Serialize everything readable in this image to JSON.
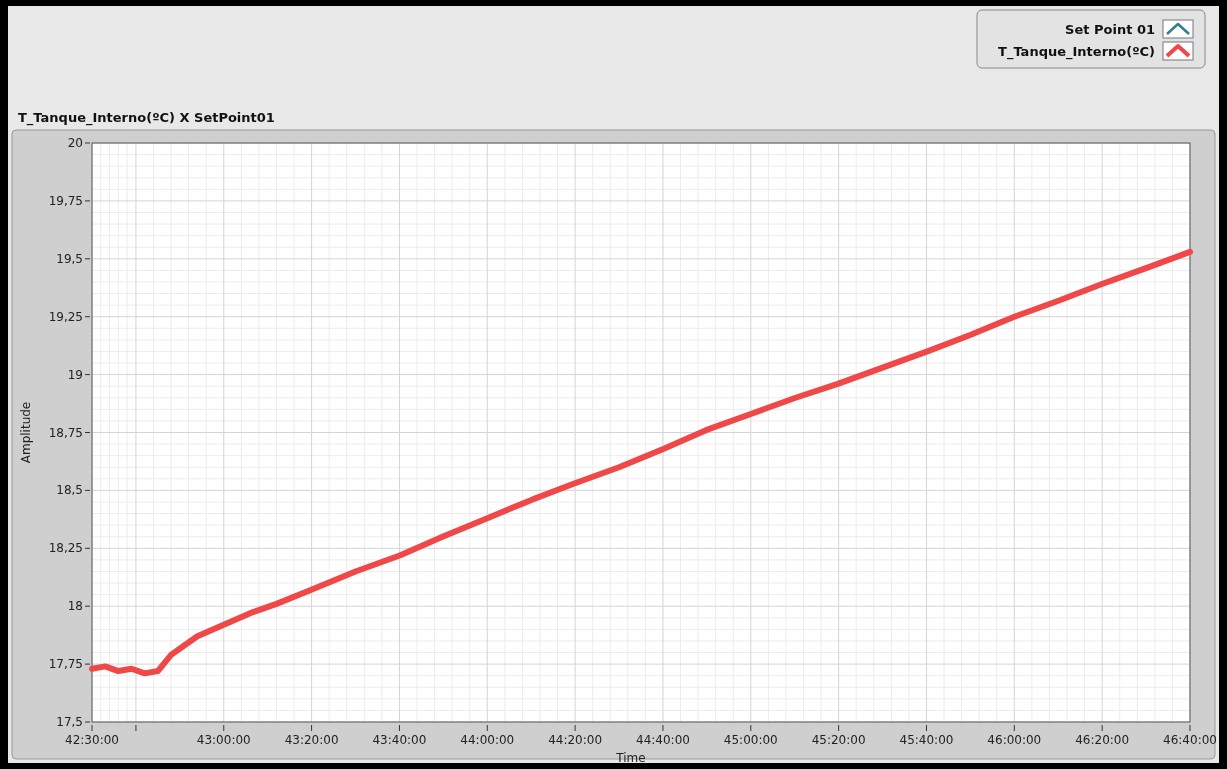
{
  "chart_data": {
    "type": "line",
    "title": "T_Tanque_Interno(ºC) X SetPoint01",
    "xlabel": "Time",
    "ylabel": "Amplitude",
    "xlim": [
      42.5,
      46.6667
    ],
    "xticks": [
      {
        "value": 42.5,
        "label": "42:30:00"
      },
      {
        "value": 42.6667,
        "label": null
      },
      {
        "value": 43,
        "label": "43:00:00"
      },
      {
        "value": 43.3333,
        "label": "43:20:00"
      },
      {
        "value": 43.6667,
        "label": "43:40:00"
      },
      {
        "value": 44,
        "label": "44:00:00"
      },
      {
        "value": 44.3333,
        "label": "44:20:00"
      },
      {
        "value": 44.6667,
        "label": "44:40:00"
      },
      {
        "value": 45,
        "label": "45:00:00"
      },
      {
        "value": 45.3333,
        "label": "45:20:00"
      },
      {
        "value": 45.6667,
        "label": "45:40:00"
      },
      {
        "value": 46,
        "label": "46:00:00"
      },
      {
        "value": 46.3333,
        "label": "46:20:00"
      },
      {
        "value": 46.6667,
        "label": "46:40:00"
      }
    ],
    "ylim": [
      17.5,
      20
    ],
    "yticks": [
      {
        "value": 17.5,
        "label": "17,5"
      },
      {
        "value": 17.75,
        "label": "17,75"
      },
      {
        "value": 18,
        "label": "18"
      },
      {
        "value": 18.25,
        "label": "18,25"
      },
      {
        "value": 18.5,
        "label": "18,5"
      },
      {
        "value": 18.75,
        "label": "18,75"
      },
      {
        "value": 19,
        "label": "19"
      },
      {
        "value": 19.25,
        "label": "19,25"
      },
      {
        "value": 19.5,
        "label": "19,5"
      },
      {
        "value": 19.75,
        "label": "19,75"
      },
      {
        "value": 20,
        "label": "20"
      }
    ],
    "grid": true,
    "legend": "top right",
    "series": [
      {
        "name": "Set Point 01",
        "color": "#2f7f8f"
      },
      {
        "name": "T_Tanque_Interno(ºC)",
        "color": "#f04848",
        "x": [
          42.5,
          42.55,
          42.6,
          42.65,
          42.7,
          42.75,
          42.8,
          42.85,
          42.9,
          43,
          43.1,
          43.2,
          43.33,
          43.5,
          43.67,
          43.83,
          44,
          44.17,
          44.33,
          44.5,
          44.67,
          44.83,
          45,
          45.17,
          45.33,
          45.5,
          45.67,
          45.83,
          46,
          46.17,
          46.33,
          46.5,
          46.6667
        ],
        "values": [
          17.73,
          17.74,
          17.72,
          17.73,
          17.71,
          17.72,
          17.79,
          17.83,
          17.87,
          17.92,
          17.97,
          18.01,
          18.07,
          18.15,
          18.22,
          18.3,
          18.38,
          18.46,
          18.53,
          18.6,
          18.68,
          18.76,
          18.83,
          18.9,
          18.96,
          19.03,
          19.1,
          19.17,
          19.25,
          19.32,
          19.39,
          19.46,
          19.53
        ]
      }
    ]
  }
}
